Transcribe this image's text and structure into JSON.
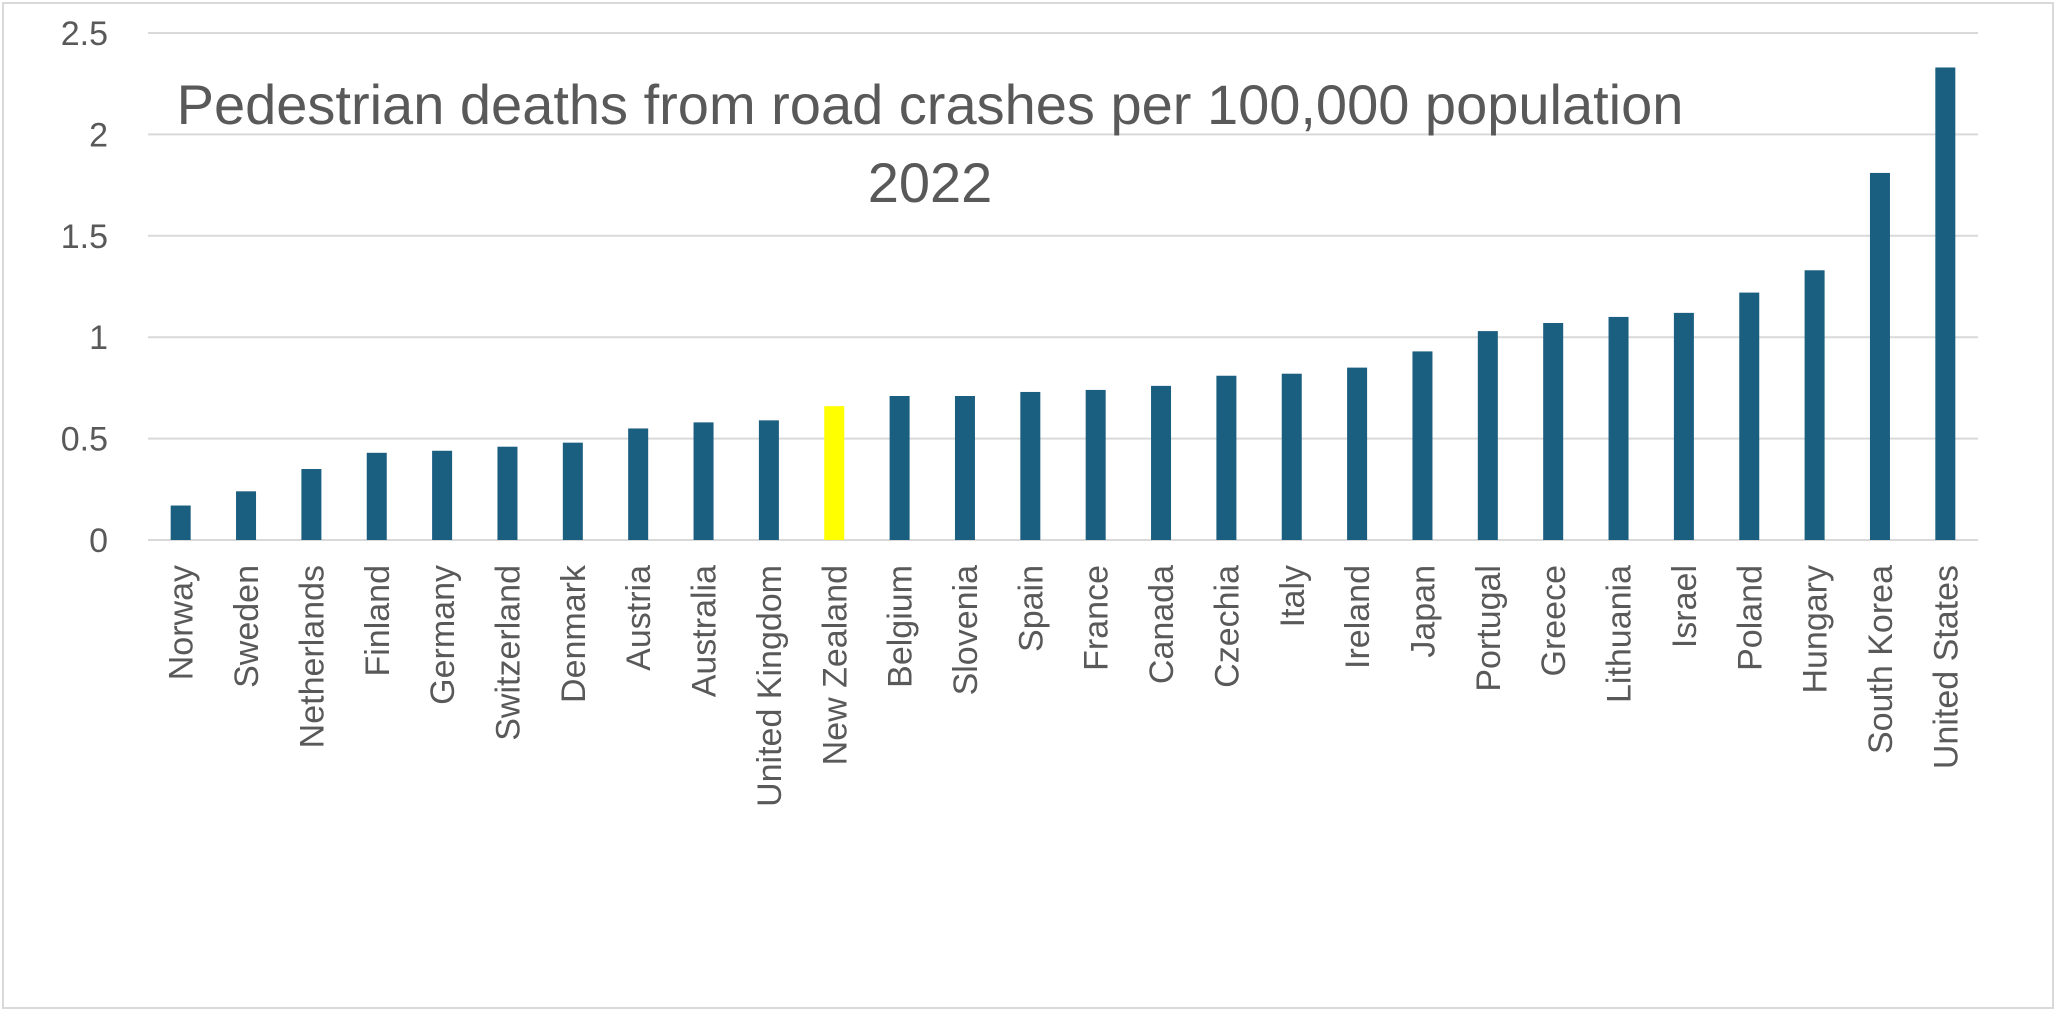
{
  "chart_data": {
    "type": "bar",
    "title": "Pedestrian deaths from road crashes per 100,000 population",
    "subtitle": "2022",
    "xlabel": "",
    "ylabel": "",
    "ylim": [
      0,
      2.5
    ],
    "yticks": [
      "0",
      "0.5",
      "1",
      "1.5",
      "2",
      "2.5"
    ],
    "grid": true,
    "legend": "none",
    "bar_color": "#1a5e80",
    "highlight_color": "#ffff00",
    "highlight_category": "New Zealand",
    "categories": [
      "Norway",
      "Sweden",
      "Netherlands",
      "Finland",
      "Germany",
      "Switzerland",
      "Denmark",
      "Austria",
      "Australia",
      "United Kingdom",
      "New Zealand",
      "Belgium",
      "Slovenia",
      "Spain",
      "France",
      "Canada",
      "Czechia",
      "Italy",
      "Ireland",
      "Japan",
      "Portugal",
      "Greece",
      "Lithuania",
      "Israel",
      "Poland",
      "Hungary",
      "South Korea",
      "United States"
    ],
    "values": [
      0.17,
      0.24,
      0.35,
      0.43,
      0.44,
      0.46,
      0.48,
      0.55,
      0.58,
      0.59,
      0.66,
      0.71,
      0.71,
      0.73,
      0.74,
      0.76,
      0.81,
      0.82,
      0.85,
      0.93,
      1.03,
      1.07,
      1.1,
      1.12,
      1.22,
      1.33,
      1.81,
      2.33
    ]
  }
}
